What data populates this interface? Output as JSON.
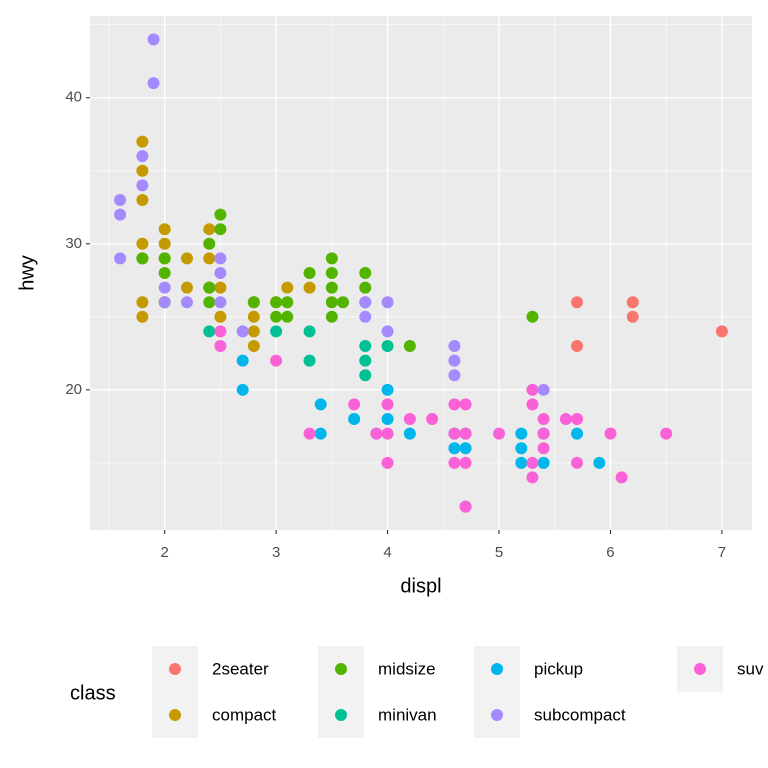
{
  "chart_data": {
    "type": "scatter",
    "x_label": "displ",
    "y_label": "hwy",
    "legend_title": "class",
    "legend_position": "bottom",
    "xlim": [
      1.33,
      7.27
    ],
    "ylim": [
      10.4,
      45.6
    ],
    "xticks": [
      2,
      3,
      4,
      5,
      6,
      7
    ],
    "yticks": [
      20,
      30,
      40
    ],
    "minor_xticks": [
      1.5,
      2.5,
      3.5,
      4.5,
      5.5,
      6.5
    ],
    "minor_yticks": [
      15,
      25,
      35,
      45
    ],
    "grid": true,
    "series": [
      {
        "name": "2seater",
        "color": "#F8766D",
        "x": [
          5.7,
          5.7,
          6.2,
          6.2,
          7.0
        ],
        "y": [
          26,
          23,
          26,
          25,
          24
        ]
      },
      {
        "name": "compact",
        "color": "#C49A00",
        "x": [
          1.8,
          1.8,
          1.8,
          1.8,
          1.8,
          1.8,
          1.8,
          2.0,
          2.0,
          2.0,
          2.0,
          2.2,
          2.2,
          2.4,
          2.4,
          2.4,
          2.5,
          2.5,
          2.8,
          2.8,
          2.8,
          2.8,
          3.0,
          3.1,
          3.3
        ],
        "y": [
          37,
          35,
          33,
          30,
          29,
          26,
          25,
          31,
          30,
          29,
          26,
          29,
          27,
          31,
          29,
          27,
          27,
          25,
          26,
          25,
          24,
          23,
          26,
          27,
          27
        ]
      },
      {
        "name": "midsize",
        "color": "#53B400",
        "x": [
          1.8,
          2.0,
          2.0,
          2.0,
          2.4,
          2.4,
          2.4,
          2.5,
          2.5,
          2.8,
          3.0,
          3.0,
          3.1,
          3.1,
          3.3,
          3.5,
          3.5,
          3.5,
          3.5,
          3.5,
          3.6,
          3.8,
          3.8,
          3.8,
          4.2,
          5.3
        ],
        "y": [
          29,
          29,
          28,
          26,
          30,
          27,
          26,
          32,
          31,
          26,
          25,
          26,
          26,
          25,
          28,
          29,
          28,
          27,
          26,
          25,
          26,
          28,
          27,
          26,
          23,
          25
        ]
      },
      {
        "name": "minivan",
        "color": "#00C094",
        "x": [
          2.4,
          3.0,
          3.3,
          3.3,
          3.8,
          3.8,
          3.8,
          4.0
        ],
        "y": [
          24,
          24,
          24,
          22,
          23,
          22,
          21,
          23
        ]
      },
      {
        "name": "pickup",
        "color": "#00B6EB",
        "x": [
          2.7,
          2.7,
          3.4,
          3.4,
          3.7,
          3.9,
          4.0,
          4.0,
          4.2,
          4.6,
          4.6,
          4.7,
          4.7,
          4.7,
          5.2,
          5.2,
          5.2,
          5.4,
          5.4,
          5.7,
          5.9
        ],
        "y": [
          22,
          20,
          19,
          17,
          18,
          17,
          20,
          18,
          17,
          17,
          16,
          17,
          16,
          12,
          17,
          16,
          15,
          17,
          15,
          17,
          15
        ]
      },
      {
        "name": "subcompact",
        "color": "#A58AFF",
        "x": [
          1.6,
          1.6,
          1.6,
          1.8,
          1.8,
          1.9,
          1.9,
          2.0,
          2.0,
          2.2,
          2.5,
          2.5,
          2.5,
          2.7,
          3.8,
          3.8,
          4.0,
          4.0,
          4.6,
          4.6,
          4.6,
          5.4,
          5.4
        ],
        "y": [
          33,
          32,
          29,
          36,
          34,
          44,
          41,
          27,
          26,
          26,
          29,
          28,
          26,
          24,
          26,
          25,
          26,
          24,
          23,
          22,
          21,
          20,
          17
        ]
      },
      {
        "name": "suv",
        "color": "#FB61D7",
        "x": [
          2.5,
          2.5,
          3.0,
          3.3,
          3.7,
          3.9,
          4.0,
          4.0,
          4.0,
          4.2,
          4.4,
          4.6,
          4.6,
          4.6,
          4.7,
          4.7,
          4.7,
          4.7,
          5.0,
          5.3,
          5.3,
          5.3,
          5.3,
          5.4,
          5.4,
          5.4,
          5.6,
          5.7,
          5.7,
          6.0,
          6.1,
          6.5
        ],
        "y": [
          24,
          23,
          22,
          17,
          19,
          17,
          19,
          17,
          15,
          18,
          18,
          19,
          17,
          15,
          19,
          17,
          15,
          12,
          17,
          20,
          19,
          15,
          14,
          18,
          17,
          16,
          18,
          18,
          15,
          17,
          14,
          17
        ]
      }
    ]
  }
}
